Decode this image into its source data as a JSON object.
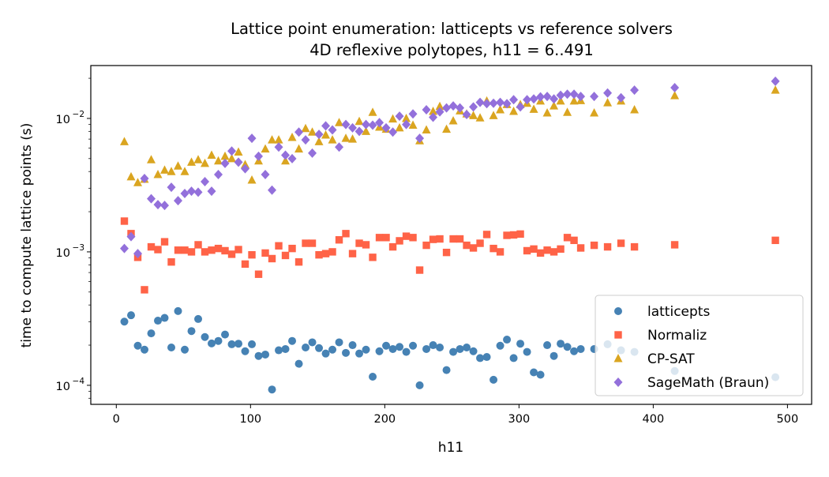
{
  "chart_data": {
    "type": "scatter",
    "title": "Lattice point enumeration: latticepts vs reference solvers",
    "subtitle": "4D reflexive polytopes, h11 = 6..491",
    "xlabel": "h11",
    "ylabel": "time to compute lattice points (s)",
    "xlim": [
      -19,
      518
    ],
    "ylim": [
      7.2e-05,
      0.0249
    ],
    "yscale": "log",
    "grid": false,
    "legend_position": "lower-right",
    "x_ticks": [
      "0",
      "100",
      "200",
      "300",
      "400",
      "500"
    ],
    "x_tick_values": [
      0,
      100,
      200,
      300,
      400,
      500
    ],
    "y_ticks": [
      {
        "base": "10",
        "exp": "−4",
        "value": 0.0001
      },
      {
        "base": "10",
        "exp": "−3",
        "value": 0.001
      },
      {
        "base": "10",
        "exp": "−2",
        "value": 0.01
      }
    ],
    "x": [
      6,
      11,
      16,
      21,
      26,
      31,
      36,
      41,
      46,
      51,
      56,
      61,
      66,
      71,
      76,
      81,
      86,
      91,
      96,
      101,
      106,
      111,
      116,
      121,
      126,
      131,
      136,
      141,
      146,
      151,
      156,
      161,
      166,
      171,
      176,
      181,
      186,
      191,
      196,
      201,
      206,
      211,
      216,
      221,
      226,
      231,
      236,
      241,
      246,
      251,
      256,
      261,
      266,
      271,
      276,
      281,
      286,
      291,
      296,
      301,
      306,
      311,
      316,
      321,
      326,
      331,
      336,
      341,
      346,
      356,
      366,
      376,
      386,
      416,
      491
    ],
    "series": [
      {
        "name": "latticepts",
        "marker": "circle",
        "color": "#4682b4",
        "values": [
          0.0003,
          0.000335,
          0.000198,
          0.000185,
          0.000245,
          0.000305,
          0.00032,
          0.000192,
          0.00036,
          0.000185,
          0.000255,
          0.000314,
          0.00023,
          0.000206,
          0.000215,
          0.00024,
          0.000203,
          0.000205,
          0.00018,
          0.000203,
          0.000166,
          0.00017,
          9.3e-05,
          0.000183,
          0.000187,
          0.000215,
          0.000145,
          0.000192,
          0.00021,
          0.00019,
          0.000173,
          0.000185,
          0.00021,
          0.000175,
          0.0002,
          0.000173,
          0.000185,
          0.000116,
          0.00018,
          0.000198,
          0.000187,
          0.000194,
          0.000178,
          0.000198,
          0.0001,
          0.000187,
          0.0002,
          0.000192,
          0.00013,
          0.000178,
          0.000187,
          0.000192,
          0.00018,
          0.00016,
          0.000163,
          0.00011,
          0.000198,
          0.00022,
          0.00016,
          0.000205,
          0.000178,
          0.000125,
          0.00012,
          0.0002,
          0.000166,
          0.000205,
          0.000194,
          0.00018,
          0.000187,
          0.000187,
          0.000203,
          0.000183,
          0.000178,
          0.000128,
          0.000115
        ]
      },
      {
        "name": "Normaliz",
        "marker": "square",
        "color": "#ff6347",
        "values": [
          0.0017,
          0.00137,
          0.00091,
          0.00052,
          0.00109,
          0.00104,
          0.00119,
          0.00084,
          0.00103,
          0.00103,
          0.001,
          0.00113,
          0.001,
          0.00103,
          0.00106,
          0.00102,
          0.00096,
          0.00104,
          0.00081,
          0.00095,
          0.00068,
          0.00098,
          0.00089,
          0.00111,
          0.00094,
          0.00106,
          0.00084,
          0.00116,
          0.00116,
          0.00095,
          0.00097,
          0.001,
          0.00123,
          0.00137,
          0.00097,
          0.00116,
          0.00113,
          0.00091,
          0.00128,
          0.00128,
          0.00109,
          0.00121,
          0.00131,
          0.00128,
          0.00073,
          0.00112,
          0.00124,
          0.00125,
          0.00099,
          0.00125,
          0.00125,
          0.00112,
          0.00107,
          0.00116,
          0.00135,
          0.00106,
          0.001,
          0.00133,
          0.00134,
          0.00136,
          0.00102,
          0.00105,
          0.00098,
          0.00103,
          0.001,
          0.00105,
          0.00128,
          0.00122,
          0.00107,
          0.00112,
          0.00109,
          0.00116,
          0.00109,
          0.00113,
          0.00122
        ]
      },
      {
        "name": "CP-SAT",
        "marker": "triangle",
        "color": "#daa520",
        "values": [
          0.0067,
          0.00365,
          0.0033,
          0.0035,
          0.0049,
          0.0038,
          0.0041,
          0.004,
          0.0044,
          0.004,
          0.0047,
          0.0049,
          0.0046,
          0.0053,
          0.0048,
          0.0052,
          0.005,
          0.0056,
          0.0045,
          0.00345,
          0.0048,
          0.0059,
          0.0069,
          0.0069,
          0.0048,
          0.0072,
          0.0059,
          0.0084,
          0.0079,
          0.0067,
          0.0075,
          0.0069,
          0.0093,
          0.0071,
          0.007,
          0.0095,
          0.008,
          0.0111,
          0.0086,
          0.0083,
          0.0099,
          0.0085,
          0.01,
          0.0089,
          0.0068,
          0.0082,
          0.0113,
          0.0123,
          0.0083,
          0.0096,
          0.0114,
          0.0108,
          0.0105,
          0.0101,
          0.0135,
          0.0105,
          0.0116,
          0.0127,
          0.0113,
          0.0127,
          0.013,
          0.0117,
          0.0135,
          0.011,
          0.0124,
          0.0135,
          0.0111,
          0.0135,
          0.0136,
          0.011,
          0.0131,
          0.0135,
          0.0116,
          0.0148,
          0.0163
        ]
      },
      {
        "name": "SageMath (Braun)",
        "marker": "diamond",
        "color": "#9370db",
        "values": [
          0.00106,
          0.0013,
          0.00097,
          0.00355,
          0.0025,
          0.00226,
          0.00223,
          0.00305,
          0.00242,
          0.00274,
          0.00285,
          0.0028,
          0.00336,
          0.00285,
          0.0038,
          0.0046,
          0.0057,
          0.0047,
          0.0042,
          0.0071,
          0.0052,
          0.0038,
          0.0029,
          0.0061,
          0.0053,
          0.005,
          0.0079,
          0.0069,
          0.0055,
          0.0076,
          0.0088,
          0.0082,
          0.0061,
          0.009,
          0.0085,
          0.008,
          0.009,
          0.0089,
          0.0093,
          0.0085,
          0.0079,
          0.0104,
          0.009,
          0.0108,
          0.0071,
          0.0116,
          0.0102,
          0.0112,
          0.012,
          0.0124,
          0.012,
          0.0107,
          0.0122,
          0.0132,
          0.0129,
          0.013,
          0.0132,
          0.0129,
          0.0138,
          0.0122,
          0.0138,
          0.014,
          0.0145,
          0.0146,
          0.014,
          0.0149,
          0.0152,
          0.0152,
          0.0146,
          0.0146,
          0.0155,
          0.0143,
          0.0163,
          0.017,
          0.019
        ]
      }
    ]
  }
}
